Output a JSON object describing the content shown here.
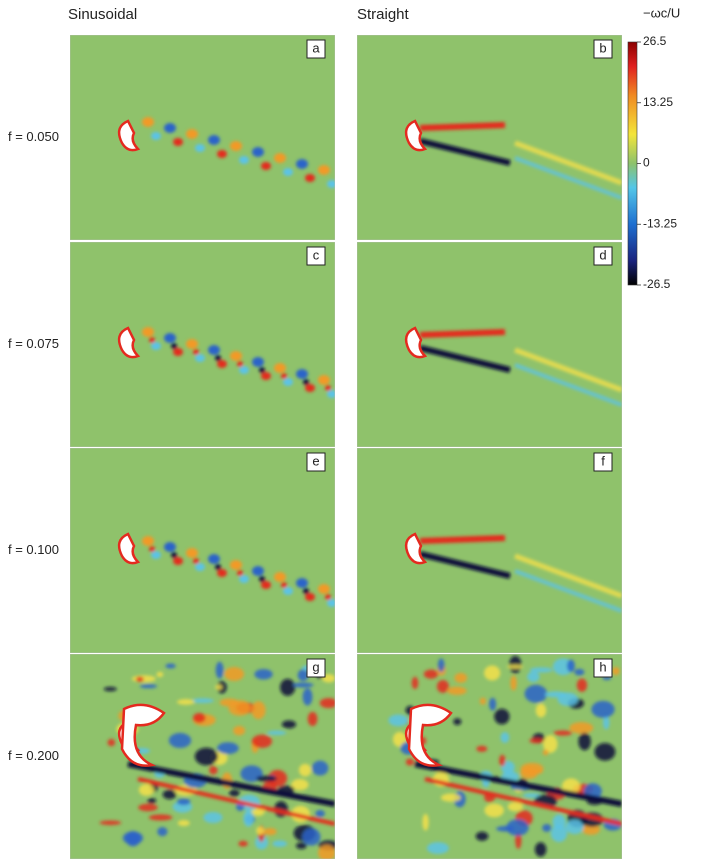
{
  "column_titles": [
    "Sinusoidal",
    "Straight"
  ],
  "rows": [
    {
      "label": "f = 0.050",
      "panels": [
        "a",
        "b"
      ]
    },
    {
      "label": "f = 0.075",
      "panels": [
        "c",
        "d"
      ]
    },
    {
      "label": "f = 0.100",
      "panels": [
        "e",
        "f"
      ]
    },
    {
      "label": "f = 0.200",
      "panels": [
        "g",
        "h"
      ]
    }
  ],
  "colorbar": {
    "title": "−ωc/U",
    "ticks": [
      26.5,
      13.25,
      0,
      -13.25,
      -26.5
    ]
  }
}
